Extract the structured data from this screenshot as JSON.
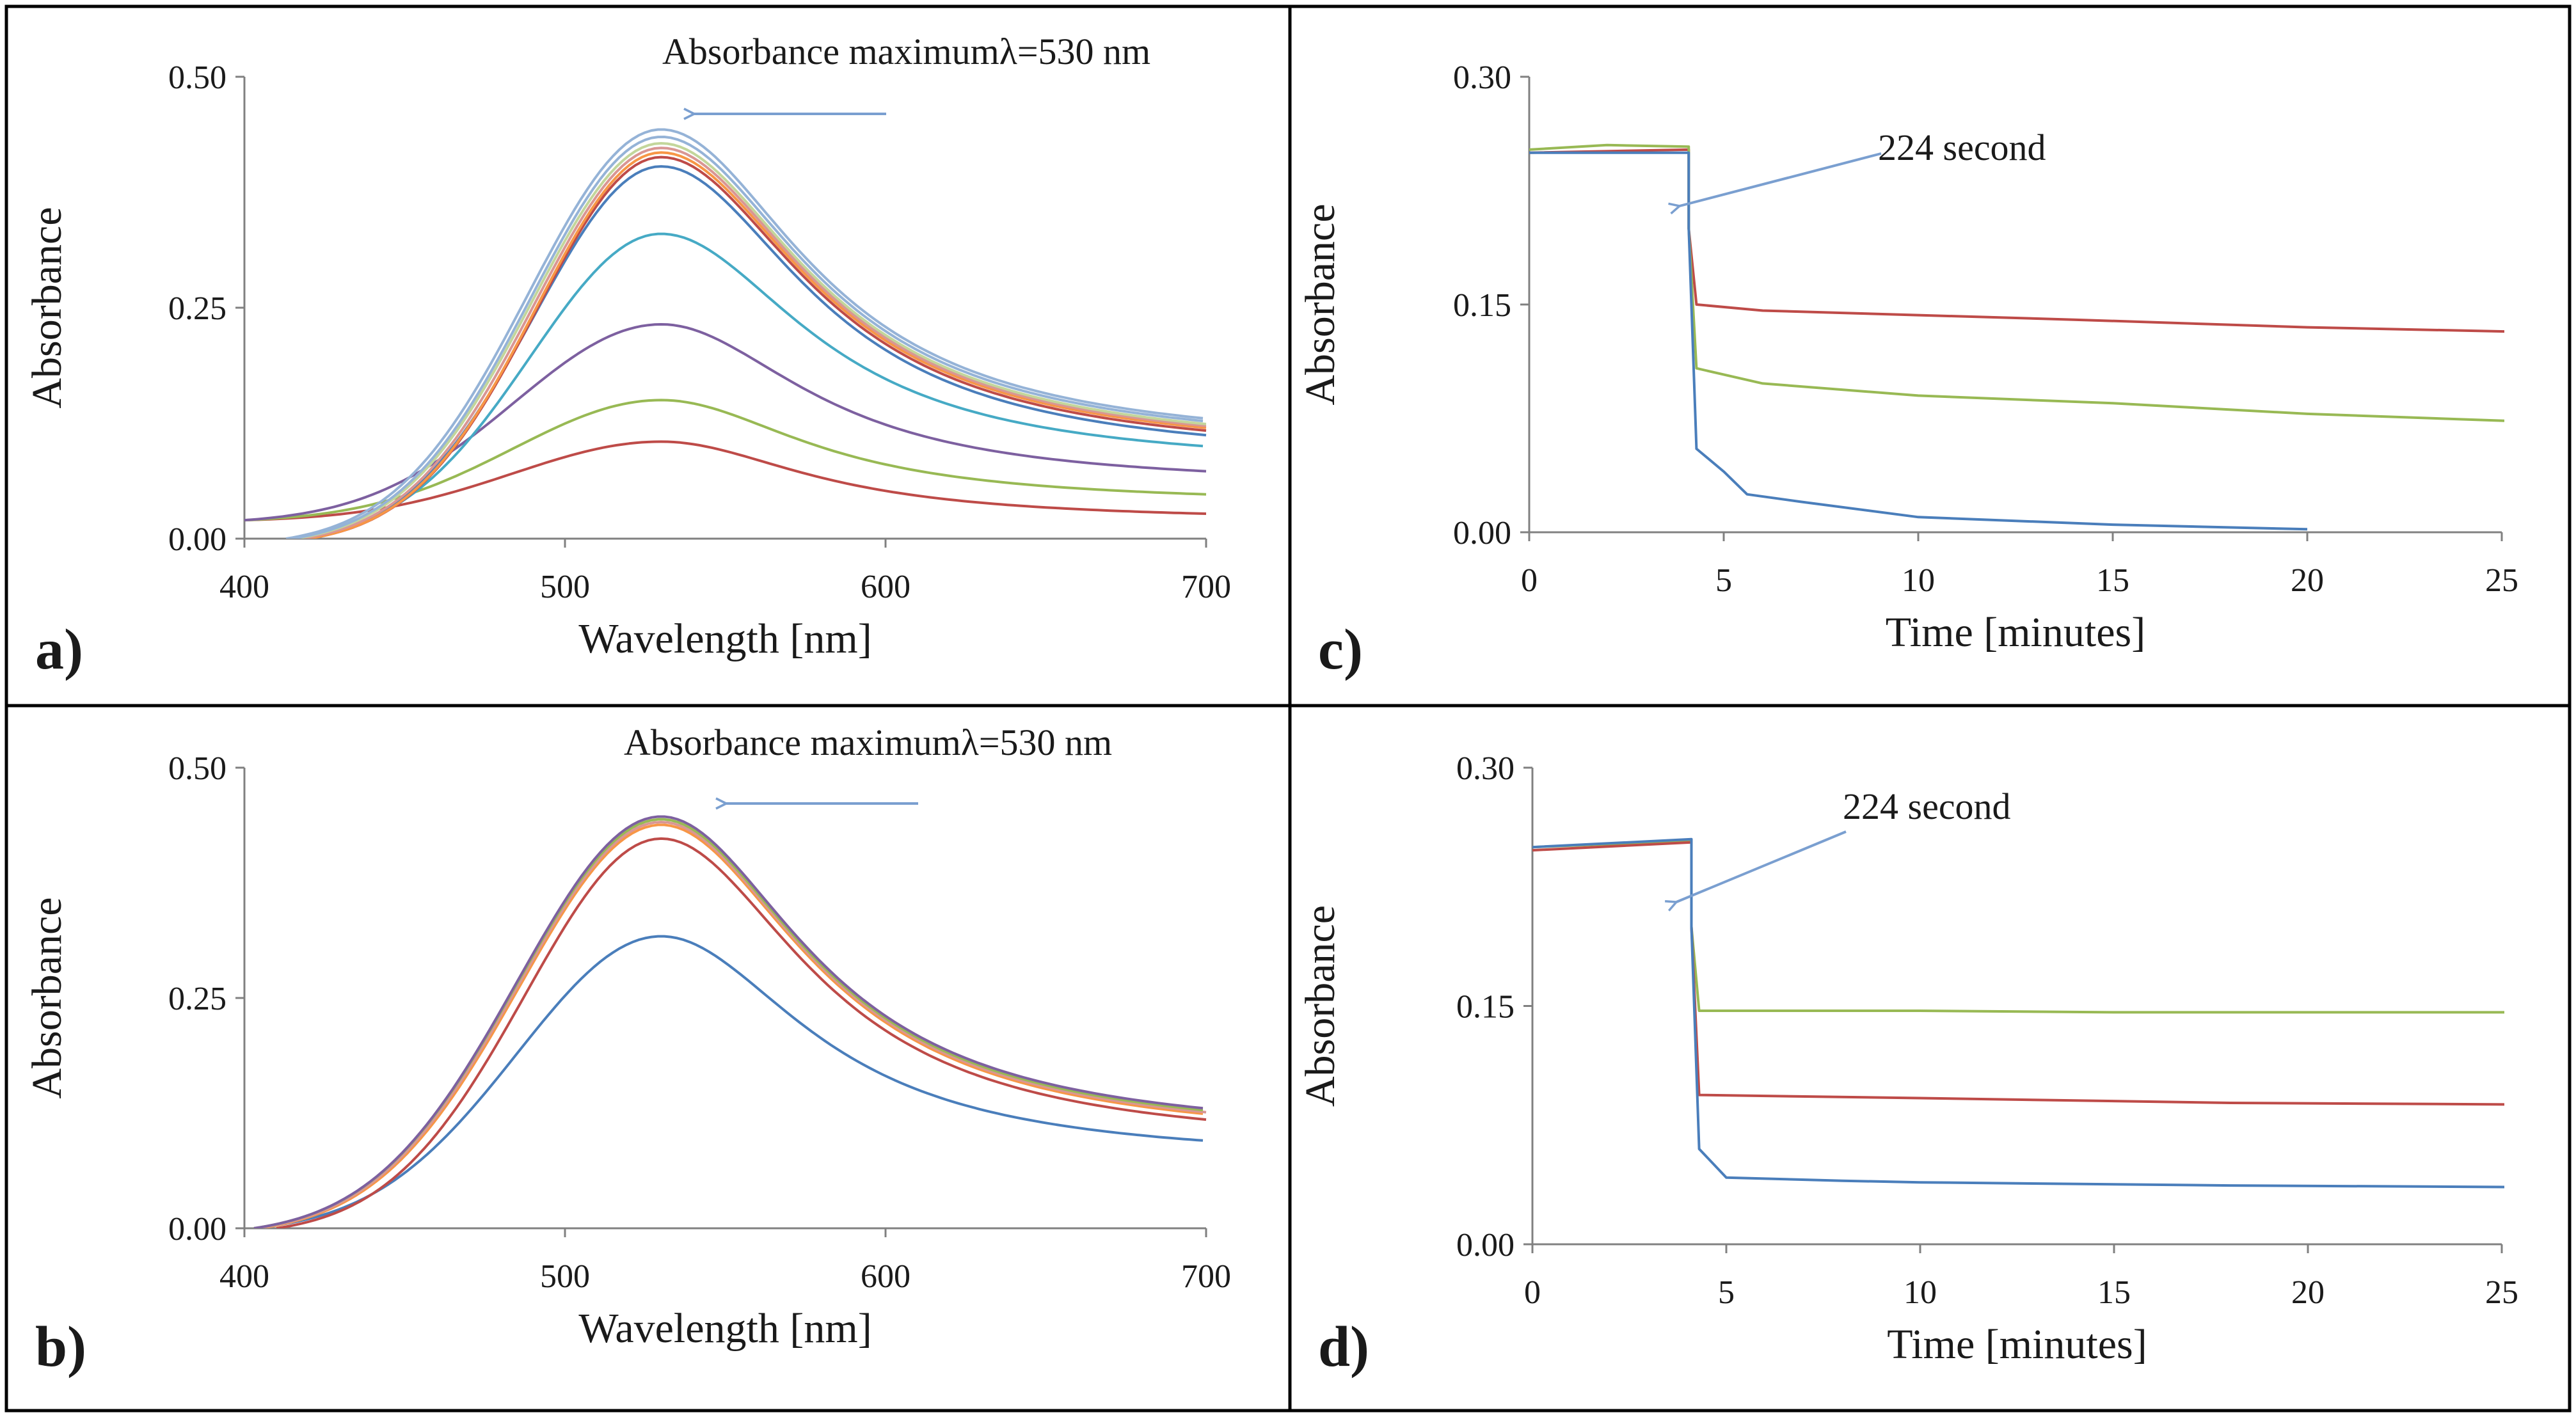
{
  "colors": {
    "blue": "#4a7ebb",
    "red": "#be4b48",
    "green": "#98b954",
    "purple": "#7d60a0",
    "teal": "#46aac5",
    "orange": "#f79646",
    "lightblue": "#95b3d7",
    "lightred": "#d99694",
    "lightgreen": "#c3d69b",
    "arrow": "#7a9fd0",
    "axis": "#808080",
    "frame": "#000000"
  },
  "chart_data": [
    {
      "id": "a",
      "panel_label": "a)",
      "type": "line",
      "xlabel": "Wavelength  [nm]",
      "ylabel": "Absorbance",
      "xlim": [
        400,
        700
      ],
      "ylim": [
        0,
        0.5
      ],
      "xticks": [
        400,
        500,
        600,
        700
      ],
      "xtick_labels": [
        "400",
        "500",
        "600",
        "700"
      ],
      "yticks": [
        0,
        0.25,
        0.5
      ],
      "ytick_labels": [
        "0.00",
        "0.25",
        "0.50"
      ],
      "annotation": {
        "text": "Absorbance maximumλ=530 nm"
      },
      "series": [
        {
          "name": "s1",
          "color": "red",
          "start": [
            400,
            0.02
          ],
          "peak": 0.105,
          "end": 0.027
        },
        {
          "name": "s2",
          "color": "green",
          "start": [
            400,
            0.02
          ],
          "peak": 0.15,
          "end": 0.048
        },
        {
          "name": "s3",
          "color": "purple",
          "start": [
            400,
            0.02
          ],
          "peak": 0.232,
          "end": 0.073
        },
        {
          "name": "s4",
          "color": "teal",
          "start": [
            415,
            0
          ],
          "peak": 0.33,
          "end": 0.1
        },
        {
          "name": "s5",
          "color": "blue",
          "start": [
            418,
            0
          ],
          "peak": 0.403,
          "end": 0.112
        },
        {
          "name": "s6",
          "color": "red",
          "start": [
            420,
            0
          ],
          "peak": 0.413,
          "end": 0.117
        },
        {
          "name": "s7",
          "color": "orange",
          "start": [
            420,
            0
          ],
          "peak": 0.418,
          "end": 0.12
        },
        {
          "name": "s8",
          "color": "lightred",
          "start": [
            418,
            0
          ],
          "peak": 0.423,
          "end": 0.122
        },
        {
          "name": "s9",
          "color": "lightgreen",
          "start": [
            416,
            0
          ],
          "peak": 0.428,
          "end": 0.124
        },
        {
          "name": "s10",
          "color": "lightblue",
          "start": [
            415,
            0
          ],
          "peak": 0.435,
          "end": 0.127
        },
        {
          "name": "s11",
          "color": "lightblue",
          "start": [
            413,
            0
          ],
          "peak": 0.443,
          "end": 0.13
        }
      ]
    },
    {
      "id": "b",
      "panel_label": "b)",
      "type": "line",
      "xlabel": "Wavelength  [nm]",
      "ylabel": "Absorbance",
      "xlim": [
        400,
        700
      ],
      "ylim": [
        0,
        0.5
      ],
      "xticks": [
        400,
        500,
        600,
        700
      ],
      "xtick_labels": [
        "400",
        "500",
        "600",
        "700"
      ],
      "yticks": [
        0,
        0.25,
        0.5
      ],
      "ytick_labels": [
        "0.00",
        "0.25",
        "0.50"
      ],
      "annotation": {
        "text": "Absorbance maximumλ=530 nm"
      },
      "series": [
        {
          "name": "s1",
          "color": "blue",
          "start": [
            403,
            0
          ],
          "peak": 0.317,
          "end": 0.095
        },
        {
          "name": "s2",
          "color": "red",
          "start": [
            410,
            0
          ],
          "peak": 0.423,
          "end": 0.118
        },
        {
          "name": "s3",
          "color": "orange",
          "start": [
            405,
            0
          ],
          "peak": 0.438,
          "end": 0.124
        },
        {
          "name": "s4",
          "color": "lightred",
          "start": [
            404,
            0
          ],
          "peak": 0.441,
          "end": 0.126
        },
        {
          "name": "s5",
          "color": "green",
          "start": [
            403,
            0
          ],
          "peak": 0.444,
          "end": 0.128
        },
        {
          "name": "s6",
          "color": "purple",
          "start": [
            403,
            0
          ],
          "peak": 0.447,
          "end": 0.13
        }
      ]
    },
    {
      "id": "c",
      "panel_label": "c)",
      "type": "line",
      "xlabel": "Time  [minutes]",
      "ylabel": "Absorbance",
      "xlim": [
        0,
        25
      ],
      "ylim": [
        0,
        0.3
      ],
      "xticks": [
        0,
        5,
        10,
        15,
        20,
        25
      ],
      "xtick_labels": [
        "0",
        "5",
        "10",
        "15",
        "20",
        "25"
      ],
      "yticks": [
        0,
        0.15,
        0.3
      ],
      "ytick_labels": [
        "0.00",
        "0.15",
        "0.30"
      ],
      "annotation": {
        "text": "224 second"
      },
      "series": [
        {
          "name": "red",
          "color": "red",
          "x": [
            0,
            4.1,
            4.1,
            4.3,
            6,
            10,
            14,
            20,
            25.5
          ],
          "y": [
            0.25,
            0.252,
            0.2,
            0.15,
            0.146,
            0.143,
            0.14,
            0.135,
            0.132
          ]
        },
        {
          "name": "green",
          "color": "green",
          "x": [
            0,
            2,
            4.1,
            4.1,
            4.3,
            6,
            10,
            15,
            20,
            25.5
          ],
          "y": [
            0.252,
            0.255,
            0.254,
            0.2,
            0.108,
            0.098,
            0.09,
            0.085,
            0.078,
            0.073
          ]
        },
        {
          "name": "blue",
          "color": "blue",
          "x": [
            0,
            4.1,
            4.1,
            4.3,
            5,
            5.6,
            7,
            10,
            15,
            20
          ],
          "y": [
            0.25,
            0.25,
            0.2,
            0.055,
            0.04,
            0.025,
            0.02,
            0.01,
            0.005,
            0.002
          ]
        }
      ]
    },
    {
      "id": "d",
      "panel_label": "d)",
      "type": "line",
      "xlabel": "Time  [minutes]",
      "ylabel": "Absorbance",
      "xlim": [
        0,
        25
      ],
      "ylim": [
        0,
        0.3
      ],
      "xticks": [
        0,
        5,
        10,
        15,
        20,
        25
      ],
      "xtick_labels": [
        "0",
        "5",
        "10",
        "15",
        "20",
        "25"
      ],
      "yticks": [
        0,
        0.15,
        0.3
      ],
      "ytick_labels": [
        "0.00",
        "0.15",
        "0.30"
      ],
      "annotation": {
        "text": "224 second"
      },
      "series": [
        {
          "name": "green",
          "color": "green",
          "x": [
            0,
            4.1,
            4.1,
            4.3,
            10,
            15,
            25.5
          ],
          "y": [
            0.25,
            0.254,
            0.2,
            0.147,
            0.147,
            0.146,
            0.146
          ]
        },
        {
          "name": "red",
          "color": "red",
          "x": [
            0,
            4.1,
            4.1,
            4.3,
            10,
            18,
            25.5
          ],
          "y": [
            0.248,
            0.253,
            0.2,
            0.094,
            0.092,
            0.089,
            0.088
          ]
        },
        {
          "name": "blue",
          "color": "blue",
          "x": [
            0,
            4.1,
            4.1,
            4.3,
            5,
            8,
            10,
            18,
            25.5
          ],
          "y": [
            0.25,
            0.255,
            0.2,
            0.06,
            0.042,
            0.04,
            0.039,
            0.037,
            0.036
          ]
        }
      ]
    }
  ]
}
